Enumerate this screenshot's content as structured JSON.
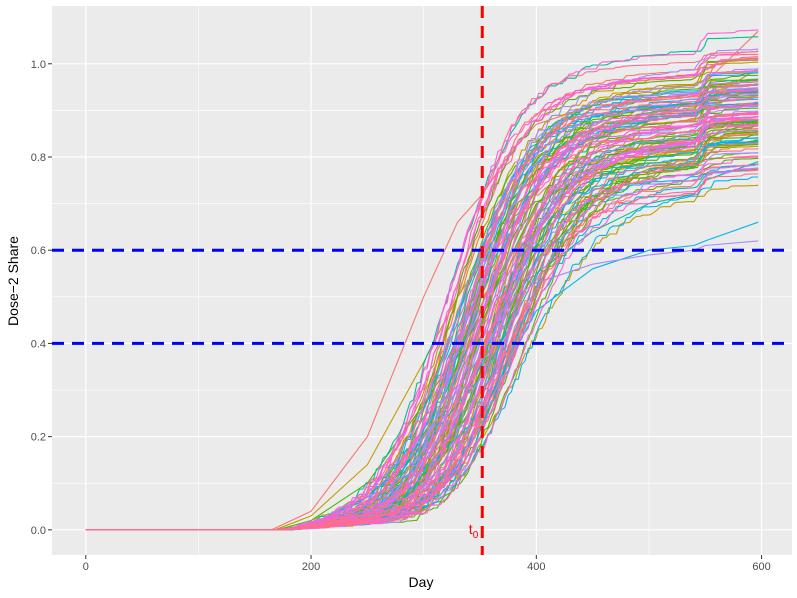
{
  "chart_data": {
    "type": "line",
    "title": "",
    "xlabel": "Day",
    "ylabel": "Dose−2 Share",
    "xlim": [
      -30,
      627
    ],
    "ylim": [
      -0.054,
      1.124
    ],
    "x_ticks": [
      0,
      200,
      400,
      600
    ],
    "x_tick_labels": [
      "0",
      "200",
      "400",
      "600"
    ],
    "y_ticks": [
      0.0,
      0.2,
      0.4,
      0.6,
      0.8,
      1.0
    ],
    "y_tick_labels": [
      "0.0",
      "0.2",
      "0.4",
      "0.6",
      "0.8",
      "1.0"
    ],
    "grid": true,
    "legend": "none",
    "colors": {
      "panel_background": "#EBEBEB",
      "grid": "#FFFFFF",
      "hline": "#0000FF",
      "vline": "#FF0000",
      "palette": [
        "#F8766D",
        "#C49A00",
        "#53B400",
        "#00C094",
        "#00B6EB",
        "#A58AFF",
        "#FB61D7",
        "#FF6C91"
      ]
    },
    "reference_lines": {
      "horizontal": [
        0.4,
        0.6
      ],
      "vertical": 352,
      "vertical_label": "t",
      "vertical_label_subscript": "0"
    },
    "series_summary": {
      "count": 120,
      "start_day": 0,
      "end_day": 597,
      "rise_start_day": 170,
      "median_share_at_day_352": 0.46,
      "share_at_day_600_range": [
        0.62,
        1.07
      ],
      "step_bump_day": 540
    },
    "series": [
      {
        "x": [
          0,
          165,
          200,
          250,
          300,
          330,
          352,
          380,
          400,
          450,
          500,
          540,
          550,
          597
        ],
        "y": [
          0,
          0,
          0.04,
          0.2,
          0.5,
          0.66,
          0.72,
          0.82,
          0.87,
          0.91,
          0.92,
          0.93,
          0.96,
          1.07
        ]
      },
      {
        "x": [
          0,
          168,
          200,
          250,
          300,
          330,
          352,
          380,
          400,
          450,
          500,
          540,
          550,
          597
        ],
        "y": [
          0,
          0,
          0.03,
          0.14,
          0.36,
          0.5,
          0.58,
          0.7,
          0.78,
          0.84,
          0.87,
          0.88,
          0.92,
          0.99
        ]
      },
      {
        "x": [
          0,
          170,
          200,
          250,
          300,
          330,
          352,
          380,
          400,
          450,
          500,
          540,
          550,
          597
        ],
        "y": [
          0,
          0,
          0.02,
          0.1,
          0.27,
          0.38,
          0.46,
          0.6,
          0.7,
          0.77,
          0.8,
          0.81,
          0.84,
          0.88
        ]
      },
      {
        "x": [
          0,
          172,
          200,
          250,
          300,
          330,
          352,
          380,
          400,
          450,
          500,
          540,
          550,
          597
        ],
        "y": [
          0,
          0,
          0.01,
          0.07,
          0.18,
          0.27,
          0.33,
          0.45,
          0.55,
          0.64,
          0.7,
          0.72,
          0.75,
          0.79
        ]
      },
      {
        "x": [
          0,
          175,
          200,
          250,
          300,
          330,
          352,
          380,
          400,
          450,
          500,
          540,
          550,
          597
        ],
        "y": [
          0,
          0,
          0.01,
          0.05,
          0.13,
          0.2,
          0.25,
          0.38,
          0.47,
          0.56,
          0.6,
          0.61,
          0.62,
          0.66
        ]
      },
      {
        "x": [
          0,
          172,
          200,
          250,
          300,
          330,
          352,
          380,
          400,
          450,
          500,
          540,
          550,
          597
        ],
        "y": [
          0,
          0,
          0.01,
          0.08,
          0.2,
          0.3,
          0.38,
          0.5,
          0.53,
          0.57,
          0.59,
          0.6,
          0.61,
          0.62
        ]
      }
    ]
  }
}
